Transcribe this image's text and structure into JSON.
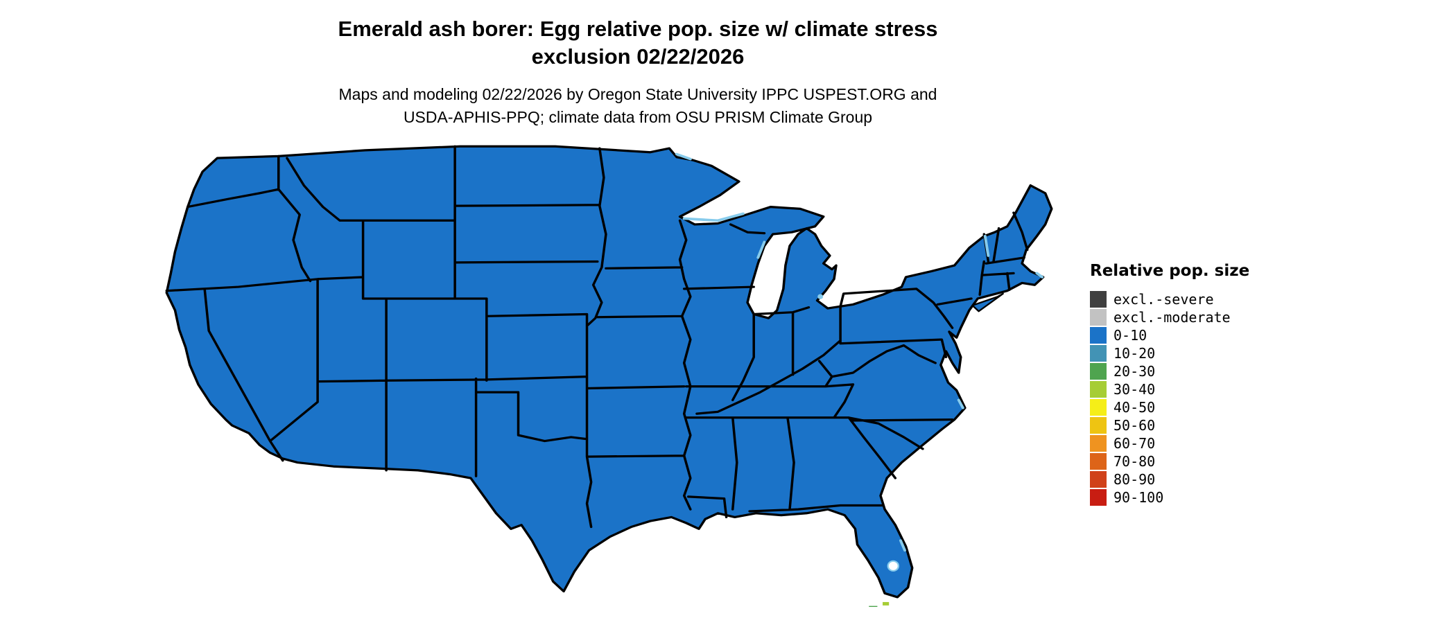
{
  "header": {
    "title_line1": "Emerald ash borer: Egg relative pop. size w/ climate stress",
    "title_line2": "exclusion 02/22/2026",
    "subtitle_line1": "Maps and modeling 02/22/2026 by Oregon State University IPPC USPEST.ORG and",
    "subtitle_line2": "USDA-APHIS-PPQ; climate data from OSU PRISM Climate Group"
  },
  "legend": {
    "title": "Relative pop. size",
    "items": [
      {
        "label": "excl.-severe",
        "color": "#3f3f3f"
      },
      {
        "label": "excl.-moderate",
        "color": "#c2c2c2"
      },
      {
        "label": "0-10",
        "color": "#1b73c8"
      },
      {
        "label": "10-20",
        "color": "#4293b5"
      },
      {
        "label": "20-30",
        "color": "#4fa44f"
      },
      {
        "label": "30-40",
        "color": "#a6cd35"
      },
      {
        "label": "40-50",
        "color": "#f5ee18"
      },
      {
        "label": "50-60",
        "color": "#eec412"
      },
      {
        "label": "60-70",
        "color": "#ef9320"
      },
      {
        "label": "70-80",
        "color": "#dd6418"
      },
      {
        "label": "80-90",
        "color": "#d0411a"
      },
      {
        "label": "90-100",
        "color": "#c81d12"
      }
    ]
  },
  "map": {
    "region": "Contiguous United States",
    "dominant_category": "0-10",
    "fill_color": "#1b73c8",
    "border_color": "#000000",
    "water_color": "#ffffff",
    "lake_edge_color": "#86cbec",
    "south_florida_specks": [
      {
        "category": "30-40",
        "color": "#a6cd35"
      },
      {
        "category": "40-50",
        "color": "#f5ee18"
      },
      {
        "category": "20-30",
        "color": "#4fa44f"
      },
      {
        "category": "30-40",
        "color": "#a6cd35"
      }
    ]
  }
}
